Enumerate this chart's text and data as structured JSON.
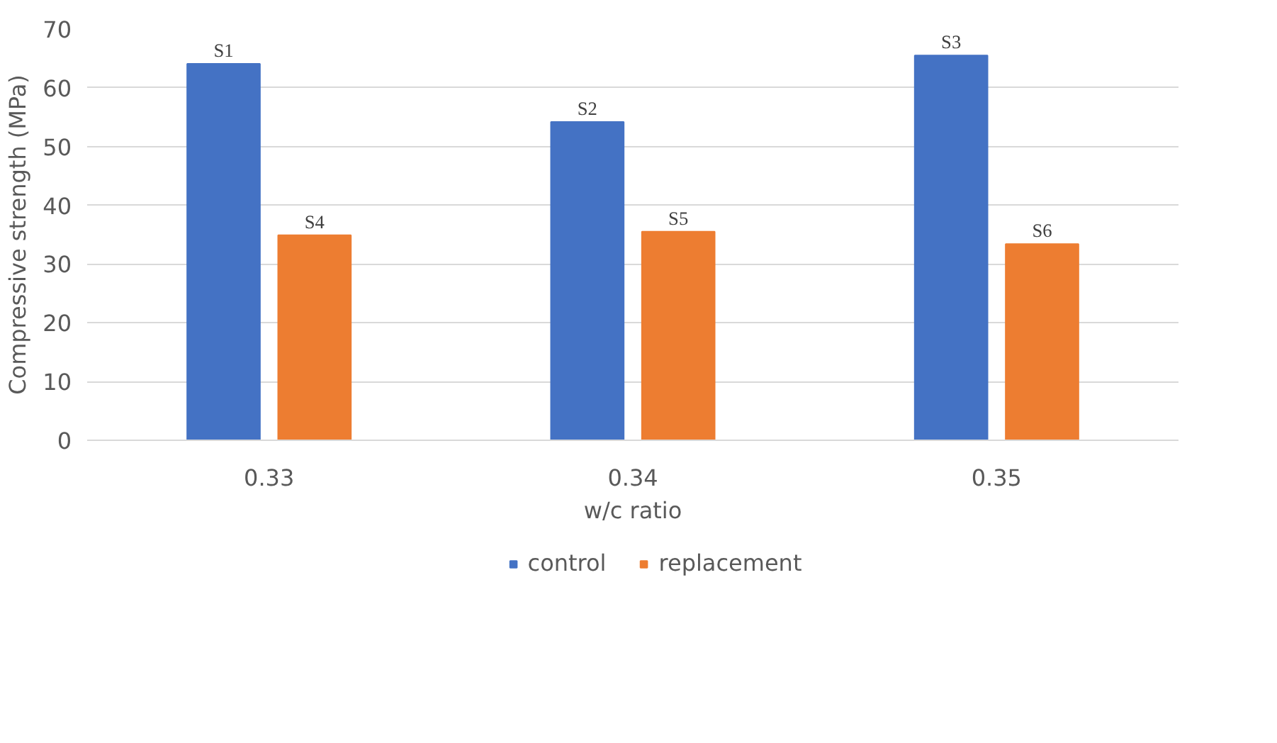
{
  "chart_data": {
    "type": "bar",
    "xlabel": "w/c ratio",
    "ylabel": "Compressive strength (MPa)",
    "categories": [
      "0.33",
      "0.34",
      "0.35"
    ],
    "series": [
      {
        "name": "control",
        "color": "#4472c4",
        "values": [
          64.1,
          54.2,
          65.5
        ],
        "value_labels": [
          "S1",
          "S2",
          "S3"
        ]
      },
      {
        "name": "replacement",
        "color": "#ed7d31",
        "values": [
          34.9,
          35.5,
          33.4
        ],
        "value_labels": [
          "S4",
          "S5",
          "S6"
        ]
      }
    ],
    "ylim": [
      0,
      70
    ],
    "yticks": [
      0,
      10,
      20,
      30,
      40,
      50,
      60,
      70
    ],
    "grid": "y",
    "legend": "bottom"
  }
}
